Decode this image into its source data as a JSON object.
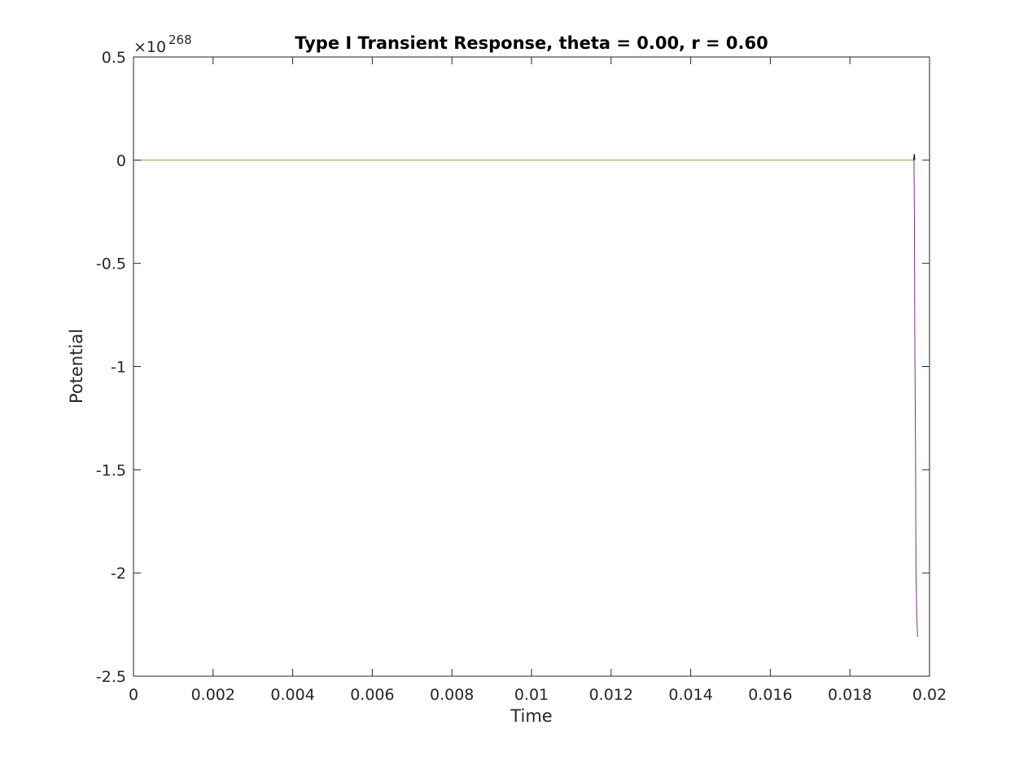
{
  "chart_data": {
    "type": "line",
    "title": "Type I Transient Response, theta = 0.00, r = 0.60",
    "xlabel": "Time",
    "ylabel": "Potential",
    "y_exponent_base": "×10",
    "y_exponent_power": "268",
    "xlim": [
      0,
      0.02
    ],
    "ylim": [
      -2.5,
      0.5
    ],
    "grid": false,
    "legend": "none",
    "box": true,
    "x_ticks": [
      0,
      0.002,
      0.004,
      0.006,
      0.008,
      0.01,
      0.012,
      0.014,
      0.016,
      0.018,
      0.02
    ],
    "x_tick_labels": [
      "0",
      "0.002",
      "0.004",
      "0.006",
      "0.008",
      "0.01",
      "0.012",
      "0.014",
      "0.016",
      "0.018",
      "0.02"
    ],
    "y_ticks": [
      0.5,
      0,
      -0.5,
      -1,
      -1.5,
      -2,
      -2.5
    ],
    "y_tick_labels": [
      "0.5",
      "0",
      "-0.5",
      "-1",
      "-1.5",
      "-2",
      "-2.5"
    ],
    "colors": {
      "axes": "#262626",
      "flat_series": "#77ac30",
      "divergent_series": "#7e2f8e",
      "spike_series": "#000000"
    },
    "series": [
      {
        "color": "#77ac30",
        "x": [
          0,
          0.0196
        ],
        "y": [
          0,
          0
        ]
      },
      {
        "color": "#7e2f8e",
        "x": [
          0.01961,
          0.01962,
          0.01963,
          0.01965,
          0.01966,
          0.01968,
          0.0197
        ],
        "y": [
          0,
          -0.25,
          -0.85,
          -1.45,
          -2.0,
          -2.2,
          -2.31
        ]
      },
      {
        "color": "#000000",
        "x": [
          0.0196,
          0.01962,
          0.01963
        ],
        "y": [
          0,
          0.03,
          0
        ]
      }
    ]
  }
}
